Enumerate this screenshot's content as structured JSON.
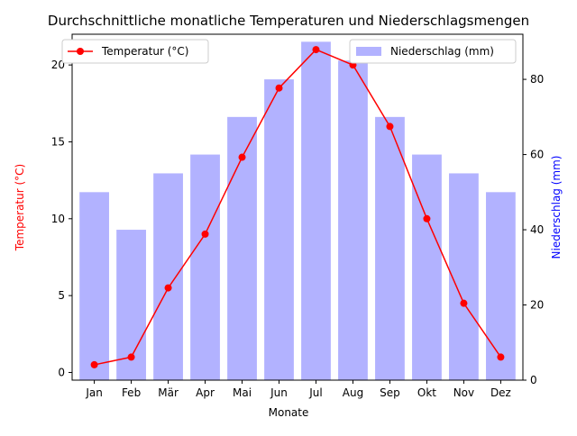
{
  "chart_data": {
    "type": "bar+line",
    "title": "Durchschnittliche monatliche Temperaturen und Niederschlagsmengen",
    "xlabel": "Monate",
    "ylabel_left": "Temperatur (°C)",
    "ylabel_right": "Niederschlag (mm)",
    "categories": [
      "Jan",
      "Feb",
      "Mär",
      "Apr",
      "Mai",
      "Jun",
      "Jul",
      "Aug",
      "Sep",
      "Okt",
      "Nov",
      "Dez"
    ],
    "series": [
      {
        "name": "Temperatur (°C)",
        "type": "line",
        "axis": "left",
        "color": "#ff0000",
        "values": [
          0.5,
          1.0,
          5.5,
          9.0,
          14.0,
          18.5,
          21.0,
          20.0,
          16.0,
          10.0,
          4.5,
          1.0
        ]
      },
      {
        "name": "Niederschlag (mm)",
        "type": "bar",
        "axis": "right",
        "color": "#0000ff",
        "opacity": 0.3,
        "values": [
          50,
          40,
          55,
          60,
          70,
          80,
          90,
          85,
          70,
          60,
          55,
          50
        ]
      }
    ],
    "ylim_left": [
      -0.5,
      22
    ],
    "yticks_left": [
      0,
      5,
      10,
      15,
      20
    ],
    "ylim_right": [
      0,
      92
    ],
    "yticks_right": [
      0,
      20,
      40,
      60,
      80
    ],
    "left_axis_label_color": "#ff0000",
    "right_axis_label_color": "#0000ff",
    "legend_line_position": "top-left",
    "legend_bar_position": "top-right",
    "grid": false
  }
}
